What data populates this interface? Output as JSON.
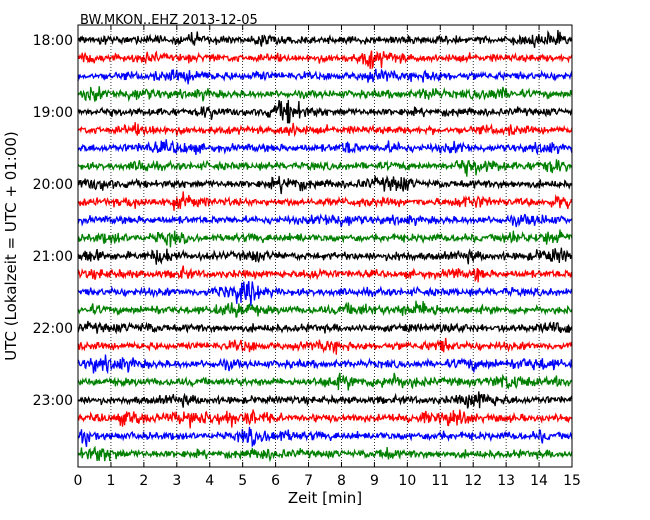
{
  "chart_data": {
    "type": "line",
    "title": "BW.MKON..EHZ 2013-12-05",
    "xlabel": "Zeit  [min]",
    "ylabel": "UTC (Lokalzeit = UTC + 01:00)",
    "xlim": [
      0,
      15
    ],
    "x_ticks": [
      "0",
      "1",
      "2",
      "3",
      "4",
      "5",
      "6",
      "7",
      "8",
      "9",
      "10",
      "11",
      "12",
      "13",
      "14",
      "15"
    ],
    "y_tick_labels": [
      "18:00",
      "19:00",
      "20:00",
      "21:00",
      "22:00",
      "23:00"
    ],
    "trace_minutes_per_line": 15,
    "trace_colors": [
      "#000000",
      "#ff0000",
      "#0000ff",
      "#008000"
    ],
    "grid": "vertical dotted lines at each minute",
    "traces": [
      {
        "start": "18:00",
        "color": "#000000"
      },
      {
        "start": "18:15",
        "color": "#ff0000"
      },
      {
        "start": "18:30",
        "color": "#0000ff"
      },
      {
        "start": "18:45",
        "color": "#008000"
      },
      {
        "start": "19:00",
        "color": "#000000"
      },
      {
        "start": "19:15",
        "color": "#ff0000"
      },
      {
        "start": "19:30",
        "color": "#0000ff"
      },
      {
        "start": "19:45",
        "color": "#008000"
      },
      {
        "start": "20:00",
        "color": "#000000"
      },
      {
        "start": "20:15",
        "color": "#ff0000"
      },
      {
        "start": "20:30",
        "color": "#0000ff"
      },
      {
        "start": "20:45",
        "color": "#008000"
      },
      {
        "start": "21:00",
        "color": "#000000"
      },
      {
        "start": "21:15",
        "color": "#ff0000"
      },
      {
        "start": "21:30",
        "color": "#0000ff"
      },
      {
        "start": "21:45",
        "color": "#008000"
      },
      {
        "start": "22:00",
        "color": "#000000"
      },
      {
        "start": "22:15",
        "color": "#ff0000"
      },
      {
        "start": "22:30",
        "color": "#0000ff"
      },
      {
        "start": "22:45",
        "color": "#008000"
      },
      {
        "start": "23:00",
        "color": "#000000"
      },
      {
        "start": "23:15",
        "color": "#ff0000"
      },
      {
        "start": "23:30",
        "color": "#0000ff"
      },
      {
        "start": "23:45",
        "color": "#008000"
      }
    ]
  }
}
